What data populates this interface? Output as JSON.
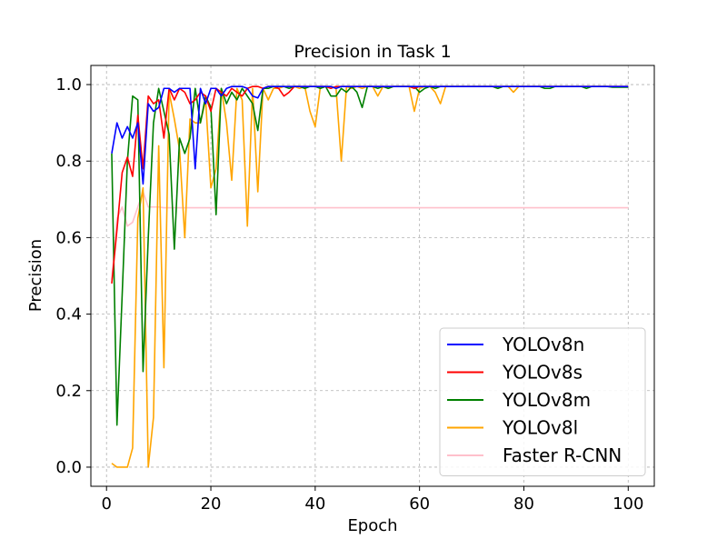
{
  "chart_data": {
    "type": "line",
    "title": "Precision in Task 1",
    "xlabel": "Epoch",
    "ylabel": "Precision",
    "xlim": [
      -3,
      105
    ],
    "ylim": [
      -0.05,
      1.05
    ],
    "xticks": [
      0,
      20,
      40,
      60,
      80,
      100
    ],
    "yticks": [
      0.0,
      0.2,
      0.4,
      0.6,
      0.8,
      1.0
    ],
    "xtick_labels": [
      "0",
      "20",
      "40",
      "60",
      "80",
      "100"
    ],
    "ytick_labels": [
      "0.0",
      "0.2",
      "0.4",
      "0.6",
      "0.8",
      "1.0"
    ],
    "grid": true,
    "legend_position": "lower-right",
    "x": [
      1,
      2,
      3,
      4,
      5,
      6,
      7,
      8,
      9,
      10,
      11,
      12,
      13,
      14,
      15,
      16,
      17,
      18,
      19,
      20,
      21,
      22,
      23,
      24,
      25,
      26,
      27,
      28,
      29,
      30,
      31,
      32,
      33,
      34,
      35,
      36,
      37,
      38,
      39,
      40,
      41,
      42,
      43,
      44,
      45,
      46,
      47,
      48,
      49,
      50,
      51,
      52,
      53,
      54,
      55,
      56,
      57,
      58,
      59,
      60,
      61,
      62,
      63,
      64,
      65,
      66,
      67,
      68,
      69,
      70,
      71,
      72,
      73,
      74,
      75,
      76,
      77,
      78,
      79,
      80,
      81,
      82,
      83,
      84,
      85,
      86,
      87,
      88,
      89,
      90,
      91,
      92,
      93,
      94,
      95,
      96,
      97,
      98,
      99,
      100
    ],
    "series": [
      {
        "name": "YOLOv8n",
        "color": "#0000ff",
        "values": [
          0.82,
          0.9,
          0.86,
          0.89,
          0.86,
          0.9,
          0.74,
          0.95,
          0.93,
          0.94,
          0.99,
          0.99,
          0.98,
          0.99,
          0.99,
          0.99,
          0.78,
          0.99,
          0.95,
          0.99,
          0.99,
          0.97,
          0.99,
          0.995,
          0.995,
          0.995,
          0.99,
          0.97,
          0.965,
          0.99,
          0.995,
          0.995,
          0.995,
          0.995,
          0.995,
          0.995,
          0.995,
          0.995,
          0.995,
          0.995,
          0.995,
          0.995,
          0.995,
          0.99,
          0.995,
          0.995,
          0.995,
          0.995,
          0.995,
          0.995,
          0.995,
          0.995,
          0.995,
          0.995,
          0.995,
          0.995,
          0.995,
          0.995,
          0.995,
          0.995,
          0.995,
          0.995,
          0.995,
          0.995,
          0.995,
          0.995,
          0.995,
          0.995,
          0.995,
          0.995,
          0.995,
          0.995,
          0.995,
          0.995,
          0.995,
          0.995,
          0.995,
          0.995,
          0.995,
          0.995,
          0.995,
          0.995,
          0.995,
          0.995,
          0.995,
          0.995,
          0.995,
          0.995,
          0.995,
          0.995,
          0.995,
          0.995,
          0.995,
          0.995,
          0.995,
          0.995,
          0.995,
          0.995,
          0.995,
          0.995
        ]
      },
      {
        "name": "YOLOv8s",
        "color": "#ff0000",
        "values": [
          0.48,
          0.62,
          0.77,
          0.81,
          0.76,
          0.92,
          0.78,
          0.97,
          0.95,
          0.96,
          0.86,
          0.99,
          0.96,
          0.99,
          0.98,
          0.95,
          0.96,
          0.98,
          0.97,
          0.93,
          0.99,
          0.98,
          0.97,
          0.99,
          0.98,
          0.97,
          0.99,
          0.995,
          0.995,
          0.99,
          0.995,
          0.995,
          0.99,
          0.97,
          0.98,
          0.995,
          0.995,
          0.995,
          0.995,
          0.995,
          0.995,
          0.995,
          0.99,
          0.995,
          0.995,
          0.995,
          0.995,
          0.995,
          0.995,
          0.995,
          0.995,
          0.995,
          0.995,
          0.995,
          0.995,
          0.995,
          0.995,
          0.995,
          0.99,
          0.995,
          0.995,
          0.995,
          0.995,
          0.995,
          0.995,
          0.995,
          0.995,
          0.995,
          0.995,
          0.995,
          0.995,
          0.995,
          0.995,
          0.995,
          0.995,
          0.995,
          0.995,
          0.995,
          0.995,
          0.995,
          0.995,
          0.995,
          0.995,
          0.995,
          0.995,
          0.995,
          0.995,
          0.995,
          0.995,
          0.995,
          0.995,
          0.995,
          0.995,
          0.995,
          0.995,
          0.995,
          0.995,
          0.995,
          0.995,
          0.995
        ]
      },
      {
        "name": "YOLOv8m",
        "color": "#008000",
        "values": [
          0.82,
          0.11,
          0.45,
          0.8,
          0.97,
          0.96,
          0.25,
          0.6,
          0.9,
          0.99,
          0.93,
          0.87,
          0.57,
          0.86,
          0.82,
          0.86,
          0.99,
          0.9,
          0.97,
          0.94,
          0.66,
          0.99,
          0.95,
          0.98,
          0.96,
          0.99,
          0.97,
          0.95,
          0.88,
          0.99,
          0.99,
          0.995,
          0.995,
          0.995,
          0.99,
          0.995,
          0.995,
          0.99,
          0.995,
          0.995,
          0.99,
          0.995,
          0.97,
          0.97,
          0.99,
          0.98,
          0.995,
          0.98,
          0.94,
          0.995,
          0.995,
          0.99,
          0.995,
          0.99,
          0.995,
          0.995,
          0.995,
          0.995,
          0.995,
          0.98,
          0.99,
          0.995,
          0.99,
          0.995,
          0.995,
          0.995,
          0.995,
          0.995,
          0.995,
          0.995,
          0.995,
          0.995,
          0.995,
          0.995,
          0.99,
          0.995,
          0.995,
          0.995,
          0.995,
          0.995,
          0.995,
          0.995,
          0.995,
          0.99,
          0.99,
          0.995,
          0.995,
          0.995,
          0.995,
          0.995,
          0.995,
          0.99,
          0.995,
          0.995,
          0.995,
          0.995,
          0.993,
          0.993,
          0.993,
          0.993
        ]
      },
      {
        "name": "YOLOv8l",
        "color": "#ffa500",
        "values": [
          0.01,
          0.0,
          0.0,
          0.0,
          0.05,
          0.65,
          0.73,
          0.0,
          0.13,
          0.84,
          0.26,
          0.98,
          0.91,
          0.83,
          0.6,
          0.91,
          0.9,
          0.9,
          0.96,
          0.73,
          0.78,
          0.99,
          0.9,
          0.75,
          0.99,
          0.96,
          0.63,
          0.99,
          0.72,
          0.99,
          0.96,
          0.99,
          0.99,
          0.995,
          0.995,
          0.995,
          0.99,
          0.995,
          0.93,
          0.89,
          0.995,
          0.995,
          0.995,
          0.99,
          0.8,
          0.995,
          0.99,
          0.995,
          0.99,
          0.995,
          0.995,
          0.97,
          0.995,
          0.99,
          0.995,
          0.995,
          0.995,
          0.995,
          0.93,
          0.99,
          0.995,
          0.995,
          0.98,
          0.95,
          0.995,
          0.995,
          0.995,
          0.995,
          0.995,
          0.995,
          0.995,
          0.995,
          0.995,
          0.995,
          0.99,
          0.995,
          0.995,
          0.98,
          0.995,
          0.995,
          0.995,
          0.995,
          0.995,
          0.995,
          0.995,
          0.995,
          0.995,
          0.995,
          0.995,
          0.995,
          0.995,
          0.995,
          0.995,
          0.995,
          0.995,
          0.995,
          0.995,
          0.995,
          0.995,
          0.995
        ]
      },
      {
        "name": "Faster R-CNN",
        "color": "#ffc0cb",
        "values": [
          0.49,
          0.65,
          0.68,
          0.63,
          0.64,
          0.68,
          0.72,
          0.68,
          0.68,
          0.68,
          0.678,
          0.678,
          0.678,
          0.678,
          0.678,
          0.678,
          0.678,
          0.678,
          0.678,
          0.678,
          0.678,
          0.678,
          0.678,
          0.678,
          0.678,
          0.678,
          0.678,
          0.678,
          0.678,
          0.678,
          0.678,
          0.678,
          0.678,
          0.678,
          0.678,
          0.678,
          0.678,
          0.678,
          0.678,
          0.678,
          0.678,
          0.678,
          0.678,
          0.678,
          0.678,
          0.678,
          0.678,
          0.678,
          0.678,
          0.678,
          0.678,
          0.678,
          0.678,
          0.678,
          0.678,
          0.678,
          0.678,
          0.678,
          0.678,
          0.678,
          0.678,
          0.678,
          0.678,
          0.678,
          0.678,
          0.678,
          0.678,
          0.678,
          0.678,
          0.678,
          0.678,
          0.678,
          0.678,
          0.678,
          0.678,
          0.678,
          0.678,
          0.678,
          0.678,
          0.678,
          0.678,
          0.678,
          0.678,
          0.678,
          0.678,
          0.678,
          0.678,
          0.678,
          0.678,
          0.678,
          0.678,
          0.678,
          0.678,
          0.678,
          0.678,
          0.678,
          0.678,
          0.678,
          0.678,
          0.678
        ]
      }
    ]
  }
}
